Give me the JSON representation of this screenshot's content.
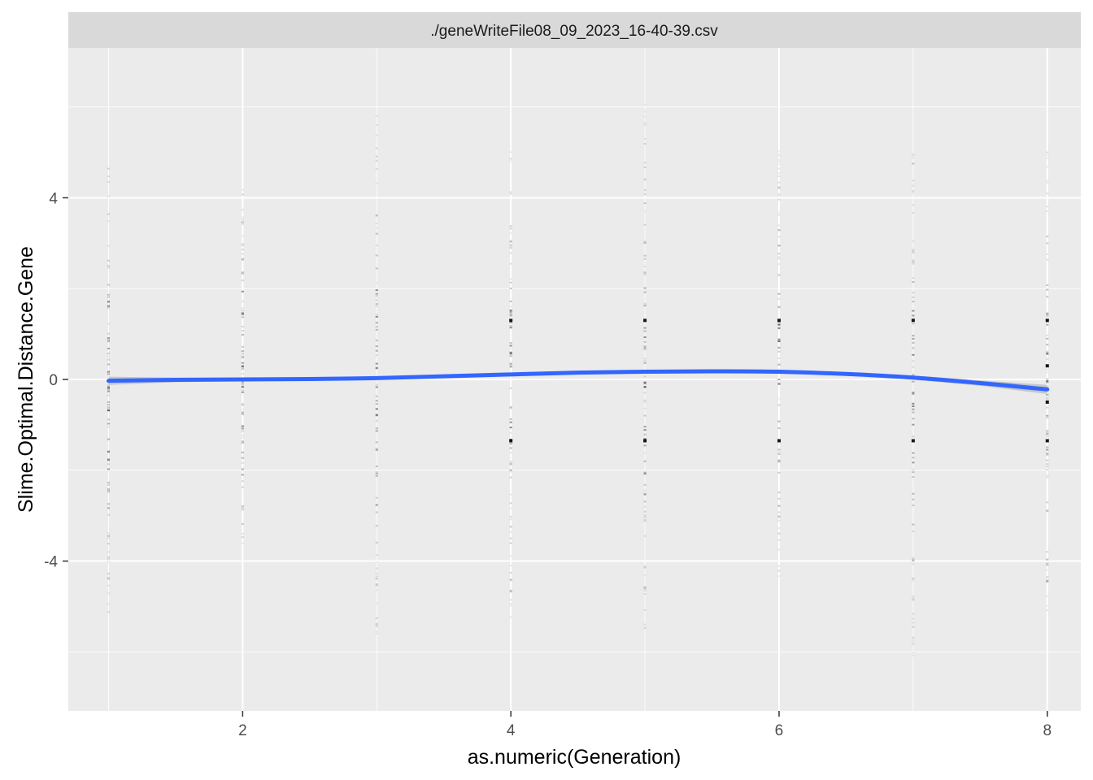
{
  "chart_data": {
    "type": "scatter",
    "facet_title": "./geneWriteFile08_09_2023_16-40-39.csv",
    "xlabel": "as.numeric(Generation)",
    "ylabel": "Slime.Optimal.Distance.Gene",
    "xlim": [
      0.7,
      8.25
    ],
    "ylim": [
      -7.3,
      7.3
    ],
    "x_ticks": [
      2,
      4,
      6,
      8
    ],
    "y_ticks": [
      -4,
      0,
      4
    ],
    "grid": true,
    "legend": "none",
    "colors": {
      "panel_bg": "#ebebeb",
      "strip_bg": "#d9d9d9",
      "grid_major": "#ffffff",
      "point": "#000000",
      "smooth_line": "#3366ff",
      "smooth_band": "#bfbfbf"
    },
    "points": {
      "generations": [
        1,
        2,
        3,
        4,
        5,
        6,
        7,
        8
      ],
      "y_ranges": [
        [
          -5.2,
          5.1
        ],
        [
          -3.9,
          4.4
        ],
        [
          -5.6,
          6.2
        ],
        [
          -5.7,
          5.1
        ],
        [
          -5.8,
          6.2
        ],
        [
          -4.4,
          5.1
        ],
        [
          -6.1,
          5.1
        ],
        [
          -5.7,
          5.1
        ]
      ],
      "dense_values": {
        "4": [
          1.3,
          -1.35
        ],
        "5": [
          1.3,
          -1.35
        ],
        "6": [
          1.3,
          -1.35
        ],
        "7": [
          1.3,
          -1.35
        ],
        "8": [
          1.3,
          -1.35,
          -0.5,
          0.3
        ]
      }
    },
    "smooth": {
      "method": "loess",
      "x": [
        1,
        1.5,
        2,
        2.5,
        3,
        3.5,
        4,
        4.5,
        5,
        5.5,
        6,
        6.5,
        7,
        7.5,
        8
      ],
      "y": [
        -0.03,
        -0.01,
        0.0,
        0.01,
        0.03,
        0.07,
        0.11,
        0.15,
        0.17,
        0.18,
        0.17,
        0.12,
        0.04,
        -0.08,
        -0.22
      ],
      "se_halfwidth": [
        0.09,
        0.05,
        0.04,
        0.035,
        0.035,
        0.035,
        0.04,
        0.04,
        0.04,
        0.04,
        0.04,
        0.04,
        0.045,
        0.06,
        0.1
      ]
    }
  }
}
